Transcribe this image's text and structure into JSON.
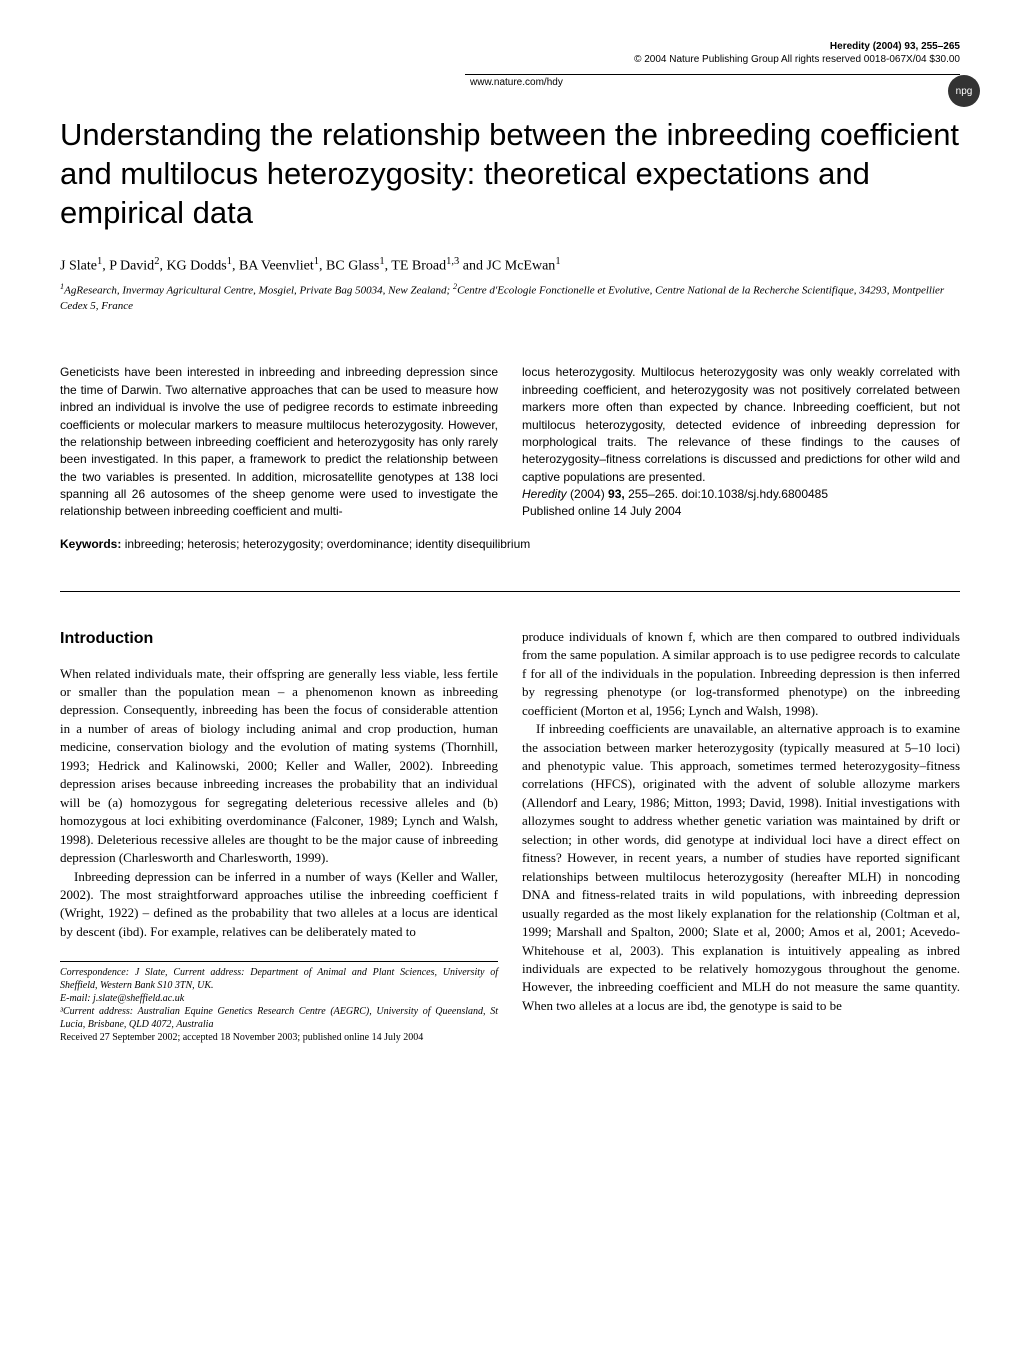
{
  "header": {
    "journal_line": "Heredity (2004) 93, 255–265",
    "copyright_line": "© 2004 Nature Publishing Group All rights reserved 0018-067X/04 $30.00",
    "url": "www.nature.com/hdy",
    "badge": "npg"
  },
  "title": "Understanding the relationship between the inbreeding coefficient and multilocus heterozygosity: theoretical expectations and empirical data",
  "authors_html": "J Slate<sup>1</sup>, P David<sup>2</sup>, KG Dodds<sup>1</sup>, BA Veenvliet<sup>1</sup>, BC Glass<sup>1</sup>, TE Broad<sup>1,3</sup> and JC McEwan<sup>1</sup>",
  "affiliations_html": "<sup>1</sup>AgResearch, Invermay Agricultural Centre, Mosgiel, Private Bag 50034, New Zealand; <sup>2</sup>Centre d'Ecologie Fonctionelle et Evolutive, Centre National de la Recherche Scientifique, 34293, Montpellier Cedex 5, France",
  "abstract": {
    "left": "Geneticists have been interested in inbreeding and inbreeding depression since the time of Darwin. Two alternative approaches that can be used to measure how inbred an individual is involve the use of pedigree records to estimate inbreeding coefficients or molecular markers to measure multilocus heterozygosity. However, the relationship between inbreeding coefficient and heterozygosity has only rarely been investigated. In this paper, a framework to predict the relationship between the two variables is presented. In addition, microsatellite genotypes at 138 loci spanning all 26 autosomes of the sheep genome were used to investigate the relationship between inbreeding coefficient and multi-",
    "right": "locus heterozygosity. Multilocus heterozygosity was only weakly correlated with inbreeding coefficient, and heterozygosity was not positively correlated between markers more often than expected by chance. Inbreeding coefficient, but not multilocus heterozygosity, detected evidence of inbreeding depression for morphological traits. The relevance of these findings to the causes of heterozygosity–fitness correlations is discussed and predictions for other wild and captive populations are presented.",
    "citation_html": "<span class='citation-journal'>Heredity</span> (2004) <b>93,</b> 255–265. doi:10.1038/sj.hdy.6800485",
    "published": "Published online 14 July 2004"
  },
  "keywords": {
    "label": "Keywords:",
    "text": " inbreeding; heterosis; heterozygosity; overdominance; identity disequilibrium"
  },
  "intro_heading": "Introduction",
  "body": {
    "left_p1": "When related individuals mate, their offspring are generally less viable, less fertile or smaller than the population mean – a phenomenon known as inbreeding depression. Consequently, inbreeding has been the focus of considerable attention in a number of areas of biology including animal and crop production, human medicine, conservation biology and the evolution of mating systems (Thornhill, 1993; Hedrick and Kalinowski, 2000; Keller and Waller, 2002). Inbreeding depression arises because inbreeding increases the probability that an individual will be (a) homozygous for segregating deleterious recessive alleles and (b) homozygous at loci exhibiting overdominance (Falconer, 1989; Lynch and Walsh, 1998). Deleterious recessive alleles are thought to be the major cause of inbreeding depression (Charlesworth and Charlesworth, 1999).",
    "left_p2": "Inbreeding depression can be inferred in a number of ways (Keller and Waller, 2002). The most straightforward approaches utilise the inbreeding coefficient f (Wright, 1922) – defined as the probability that two alleles at a locus are identical by descent (ibd). For example, relatives can be deliberately mated to",
    "right_p1": "produce individuals of known f, which are then compared to outbred individuals from the same population. A similar approach is to use pedigree records to calculate f for all of the individuals in the population. Inbreeding depression is then inferred by regressing phenotype (or log-transformed phenotype) on the inbreeding coefficient (Morton et al, 1956; Lynch and Walsh, 1998).",
    "right_p2": "If inbreeding coefficients are unavailable, an alternative approach is to examine the association between marker heterozygosity (typically measured at 5–10 loci) and phenotypic value. This approach, sometimes termed heterozygosity–fitness correlations (HFCS), originated with the advent of soluble allozyme markers (Allendorf and Leary, 1986; Mitton, 1993; David, 1998). Initial investigations with allozymes sought to address whether genetic variation was maintained by drift or selection; in other words, did genotype at individual loci have a direct effect on fitness? However, in recent years, a number of studies have reported significant relationships between multilocus heterozygosity (hereafter MLH) in noncoding DNA and fitness-related traits in wild populations, with inbreeding depression usually regarded as the most likely explanation for the relationship (Coltman et al, 1999; Marshall and Spalton, 2000; Slate et al, 2000; Amos et al, 2001; Acevedo-Whitehouse et al, 2003). This explanation is intuitively appealing as inbred individuals are expected to be relatively homozygous throughout the genome. However, the inbreeding coefficient and MLH do not measure the same quantity. When two alleles at a locus are ibd, the genotype is said to be"
  },
  "footer": {
    "correspondence": "Correspondence: J Slate, Current address: Department of Animal and Plant Sciences, University of Sheffield, Western Bank S10 3TN, UK. ",
    "email_label": "E-mail: j.slate@sheffield.ac.uk",
    "addr3": "³Current address: Australian Equine Genetics Research Centre (AEGRC), University of Queensland, St Lucia, Brisbane, QLD 4072, Australia",
    "received": "Received 27 September 2002; accepted 18 November 2003; published online 14 July 2004"
  },
  "style": {
    "background_color": "#ffffff",
    "text_color": "#000000",
    "title_fontsize": 31,
    "body_fontsize": 13,
    "abstract_fontsize": 12,
    "footer_fontsize": 10
  }
}
